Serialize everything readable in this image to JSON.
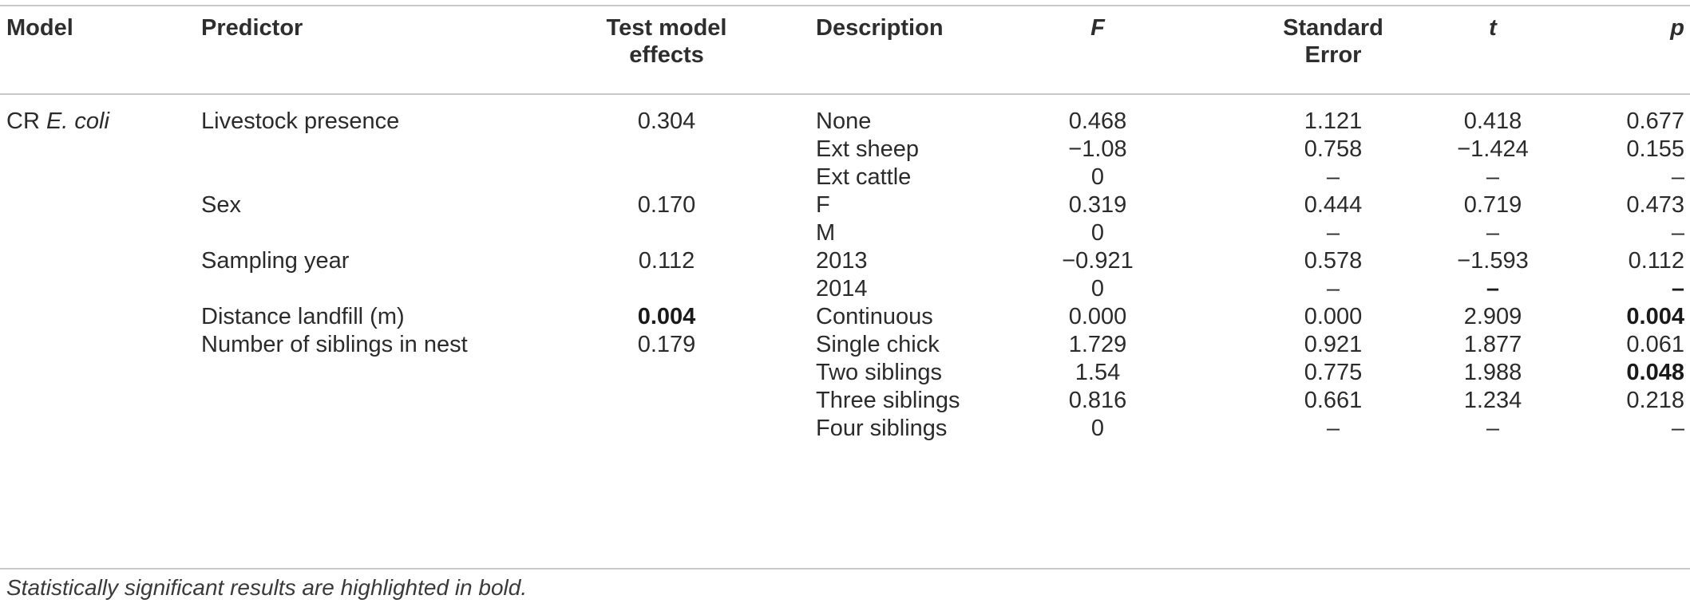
{
  "headers": {
    "model": "Model",
    "predictor": "Predictor",
    "test_effects_1": "Test model",
    "test_effects_2": "effects",
    "description": "Description",
    "f": "F",
    "se_1": "Standard",
    "se_2": "Error",
    "t": "t",
    "p": "p"
  },
  "model": {
    "prefix": "CR ",
    "italic": "E. coli"
  },
  "rows": [
    {
      "predictor": "Livestock presence",
      "effect": "0.304",
      "desc": "None",
      "f": "0.468",
      "se": "1.121",
      "t": "0.418",
      "p": "0.677"
    },
    {
      "predictor": "",
      "effect": "",
      "desc": "Ext sheep",
      "f": "−1.08",
      "se": "0.758",
      "t": "−1.424",
      "p": "0.155"
    },
    {
      "predictor": "",
      "effect": "",
      "desc": "Ext cattle",
      "f": "0",
      "se": "–",
      "t": "–",
      "p": "–"
    },
    {
      "predictor": "Sex",
      "effect": "0.170",
      "desc": "F",
      "f": "0.319",
      "se": "0.444",
      "t": "0.719",
      "p": "0.473"
    },
    {
      "predictor": "",
      "effect": "",
      "desc": "M",
      "f": "0",
      "se": "–",
      "t": "–",
      "p": "–"
    },
    {
      "predictor": "Sampling year",
      "effect": "0.112",
      "desc": "2013",
      "f": "−0.921",
      "se": "0.578",
      "t": "−1.593",
      "p": "0.112"
    },
    {
      "predictor": "",
      "effect": "",
      "desc": "2014",
      "f": "0",
      "se": "–",
      "t": "–",
      "p": "–"
    },
    {
      "predictor": "Distance landfill (m)",
      "effect": "0.004",
      "desc": "Continuous",
      "f": "0.000",
      "se": "0.000",
      "t": "2.909",
      "p": "0.004"
    },
    {
      "predictor": "Number of siblings in nest",
      "effect": "0.179",
      "desc": "Single chick",
      "f": "1.729",
      "se": "0.921",
      "t": "1.877",
      "p": "0.061"
    },
    {
      "predictor": "",
      "effect": "",
      "desc": "Two siblings",
      "f": "1.54",
      "se": "0.775",
      "t": "1.988",
      "p": "0.048"
    },
    {
      "predictor": "",
      "effect": "",
      "desc": "Three siblings",
      "f": "0.816",
      "se": "0.661",
      "t": "1.234",
      "p": "0.218"
    },
    {
      "predictor": "",
      "effect": "",
      "desc": "Four siblings",
      "f": "0",
      "se": "–",
      "t": "–",
      "p": "–"
    }
  ],
  "footnote": "Statistically significant results are highlighted in bold."
}
